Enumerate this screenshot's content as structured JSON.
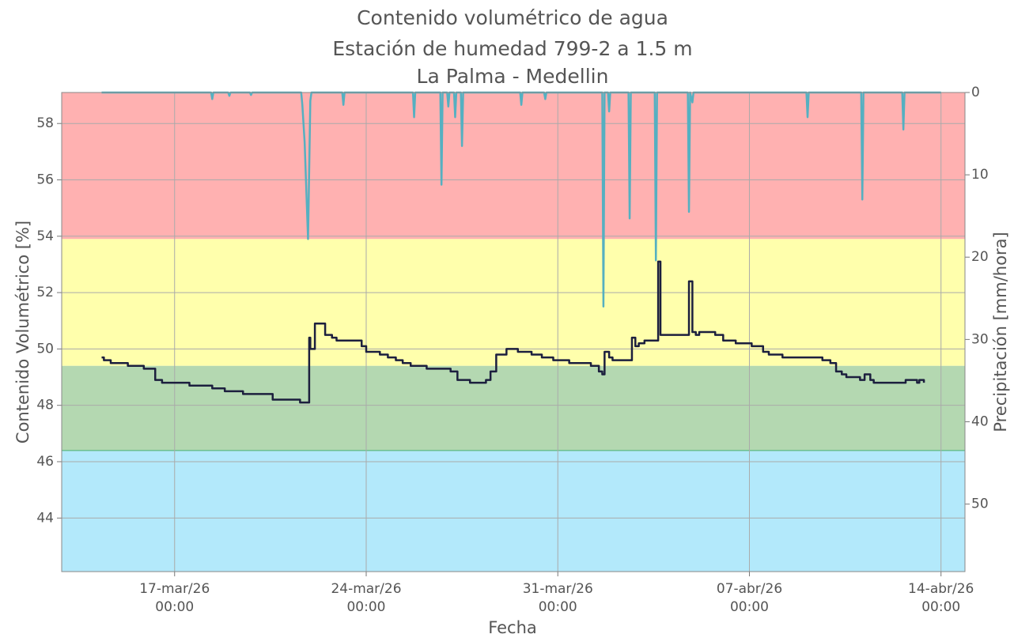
{
  "chart_data": {
    "type": "line",
    "title": [
      "Contenido volumétrico de agua",
      "Estación de humedad 799-2 a 1.5 m",
      "La Palma - Medellin"
    ],
    "xlabel": "Fecha",
    "ylabel": "Contenido Volumétrico [%]",
    "y2label": "Precipitación [mm/hora]",
    "xlim": [
      "2026-03-12T21:00",
      "2026-04-14T21:00"
    ],
    "xticks": [
      {
        "value": "2026-03-17T00:00",
        "label": "17-mar/26\n00:00"
      },
      {
        "value": "2026-03-24T00:00",
        "label": "24-mar/26\n00:00"
      },
      {
        "value": "2026-03-31T00:00",
        "label": "31-mar/26\n00:00"
      },
      {
        "value": "2026-04-07T00:00",
        "label": "07-abr/26\n00:00"
      },
      {
        "value": "2026-04-14T00:00",
        "label": "14-abr/26\n00:00"
      }
    ],
    "ylim": [
      42.1,
      59.1
    ],
    "yticks": [
      44,
      46,
      48,
      50,
      52,
      54,
      56,
      58
    ],
    "y2lim": [
      0,
      58.2
    ],
    "y2ticks": [
      0,
      10,
      20,
      30,
      40,
      50
    ],
    "y2_inverted": true,
    "grid": true,
    "bands": [
      {
        "from": 53.9,
        "to": 59.1,
        "color": "#ffb1b1"
      },
      {
        "from": 49.4,
        "to": 53.9,
        "color": "#ffffac"
      },
      {
        "from": 46.4,
        "to": 49.4,
        "color": "#b4d8b1"
      },
      {
        "from": 42.1,
        "to": 46.4,
        "color": "#b3e9fb"
      }
    ],
    "series": [
      {
        "name": "Precipitación",
        "color": "#55b0c1",
        "axis": "y2",
        "drawstyle": "line",
        "x": [
          "2026-03-14T08:00",
          "2026-03-18T08:00",
          "2026-03-18T09:00",
          "2026-03-18T10:00",
          "2026-03-18T23:00",
          "2026-03-19T00:00",
          "2026-03-19T01:00",
          "2026-03-19T18:00",
          "2026-03-19T19:00",
          "2026-03-19T20:00",
          "2026-03-21T15:00",
          "2026-03-21T16:00",
          "2026-03-21T18:00",
          "2026-03-21T21:00",
          "2026-03-21T23:00",
          "2026-03-22T00:00",
          "2026-03-23T03:00",
          "2026-03-23T04:00",
          "2026-03-23T05:00",
          "2026-03-25T17:00",
          "2026-03-25T18:00",
          "2026-03-25T19:00",
          "2026-03-26T17:00",
          "2026-03-26T18:00",
          "2026-03-26T19:00",
          "2026-03-26T23:00",
          "2026-03-27T00:00",
          "2026-03-27T01:00",
          "2026-03-27T05:00",
          "2026-03-27T06:00",
          "2026-03-27T07:00",
          "2026-03-27T11:00",
          "2026-03-27T12:00",
          "2026-03-27T13:00",
          "2026-03-29T15:00",
          "2026-03-29T16:00",
          "2026-03-29T17:00",
          "2026-03-30T12:00",
          "2026-03-30T13:00",
          "2026-03-30T14:00",
          "2026-04-01T15:00",
          "2026-04-01T16:00",
          "2026-04-01T17:00",
          "2026-04-01T20:00",
          "2026-04-01T21:00",
          "2026-04-01T22:00",
          "2026-04-02T14:00",
          "2026-04-02T15:00",
          "2026-04-02T16:00",
          "2026-04-03T13:00",
          "2026-04-03T14:00",
          "2026-04-03T15:00",
          "2026-04-04T18:00",
          "2026-04-04T19:00",
          "2026-04-04T20:00",
          "2026-04-04T22:00",
          "2026-04-04T23:00",
          "2026-04-09T02:00",
          "2026-04-09T03:00",
          "2026-04-09T04:00",
          "2026-04-11T02:00",
          "2026-04-11T03:00",
          "2026-04-11T04:00",
          "2026-04-12T14:00",
          "2026-04-12T15:00",
          "2026-04-12T16:00",
          "2026-04-14T00:00"
        ],
        "values": [
          0,
          0,
          0.8,
          0,
          0,
          0.4,
          0,
          0,
          0.3,
          0,
          0,
          1.5,
          6,
          17.8,
          1,
          0,
          0,
          1.5,
          0,
          0,
          3,
          0,
          0,
          11.2,
          0,
          0,
          1.7,
          0,
          0,
          3,
          0,
          0,
          6.5,
          0,
          0,
          1.5,
          0,
          0,
          0.8,
          0,
          0,
          26,
          0,
          0,
          2.3,
          0,
          0,
          15.3,
          0,
          0,
          20.4,
          0,
          0,
          14.5,
          0,
          1.2,
          0,
          0,
          3,
          0,
          0,
          13,
          0,
          0,
          4.5,
          0,
          0
        ]
      },
      {
        "name": "Contenido volumétrico",
        "color": "#1c1f3e",
        "axis": "y",
        "drawstyle": "steps-post",
        "x": [
          "2026-03-14T08:00",
          "2026-03-14T10:00",
          "2026-03-14T16:00",
          "2026-03-15T07:00",
          "2026-03-15T21:00",
          "2026-03-16T07:00",
          "2026-03-16T13:00",
          "2026-03-17T13:00",
          "2026-03-18T09:00",
          "2026-03-18T20:00",
          "2026-03-19T12:00",
          "2026-03-20T14:00",
          "2026-03-21T14:00",
          "2026-03-21T21:00",
          "2026-03-21T22:00",
          "2026-03-21T23:00",
          "2026-03-22T03:00",
          "2026-03-22T09:00",
          "2026-03-22T12:00",
          "2026-03-22T18:00",
          "2026-03-22T22:00",
          "2026-03-23T16:00",
          "2026-03-23T20:00",
          "2026-03-24T00:00",
          "2026-03-24T12:00",
          "2026-03-24T19:00",
          "2026-03-25T02:00",
          "2026-03-25T08:00",
          "2026-03-25T15:00",
          "2026-03-26T05:00",
          "2026-03-27T02:00",
          "2026-03-27T08:00",
          "2026-03-27T19:00",
          "2026-03-28T09:00",
          "2026-03-28T13:00",
          "2026-03-28T18:00",
          "2026-03-29T03:00",
          "2026-03-29T13:00",
          "2026-03-30T01:00",
          "2026-03-30T10:00",
          "2026-03-30T20:00",
          "2026-03-31T10:00",
          "2026-04-01T05:00",
          "2026-04-01T12:00",
          "2026-04-01T15:00",
          "2026-04-01T17:00",
          "2026-04-01T21:00",
          "2026-04-02T00:00",
          "2026-04-02T15:00",
          "2026-04-02T17:00",
          "2026-04-02T20:00",
          "2026-04-02T23:00",
          "2026-04-03T04:00",
          "2026-04-03T14:00",
          "2026-04-03T16:00",
          "2026-04-03T18:00",
          "2026-04-04T18:00",
          "2026-04-04T19:00",
          "2026-04-04T22:00",
          "2026-04-05T01:00",
          "2026-04-05T04:00",
          "2026-04-05T18:00",
          "2026-04-06T01:00",
          "2026-04-06T12:00",
          "2026-04-07T02:00",
          "2026-04-07T12:00",
          "2026-04-07T17:00",
          "2026-04-08T05:00",
          "2026-04-08T23:00",
          "2026-04-09T16:00",
          "2026-04-09T23:00",
          "2026-04-10T04:00",
          "2026-04-10T09:00",
          "2026-04-10T13:00",
          "2026-04-11T01:00",
          "2026-04-11T05:00",
          "2026-04-11T10:00",
          "2026-04-11T13:00",
          "2026-04-12T13:00",
          "2026-04-12T17:00",
          "2026-04-13T03:00",
          "2026-04-13T05:00",
          "2026-04-13T09:00"
        ],
        "values": [
          49.7,
          49.6,
          49.5,
          49.4,
          49.3,
          48.9,
          48.8,
          48.7,
          48.6,
          48.5,
          48.4,
          48.2,
          48.1,
          48.1,
          50.4,
          50.0,
          50.9,
          50.9,
          50.5,
          50.4,
          50.3,
          50.3,
          50.1,
          49.9,
          49.8,
          49.7,
          49.6,
          49.5,
          49.4,
          49.3,
          49.2,
          48.9,
          48.8,
          48.9,
          49.2,
          49.8,
          50.0,
          49.9,
          49.8,
          49.7,
          49.6,
          49.5,
          49.4,
          49.2,
          49.1,
          49.9,
          49.7,
          49.6,
          49.6,
          50.4,
          50.1,
          50.2,
          50.3,
          50.3,
          53.1,
          50.5,
          50.5,
          52.4,
          50.6,
          50.5,
          50.6,
          50.5,
          50.3,
          50.2,
          50.1,
          49.9,
          49.8,
          49.7,
          49.7,
          49.6,
          49.5,
          49.2,
          49.1,
          49.0,
          48.9,
          49.1,
          48.9,
          48.8,
          48.8,
          48.9,
          48.8,
          48.9,
          48.8
        ]
      }
    ]
  }
}
